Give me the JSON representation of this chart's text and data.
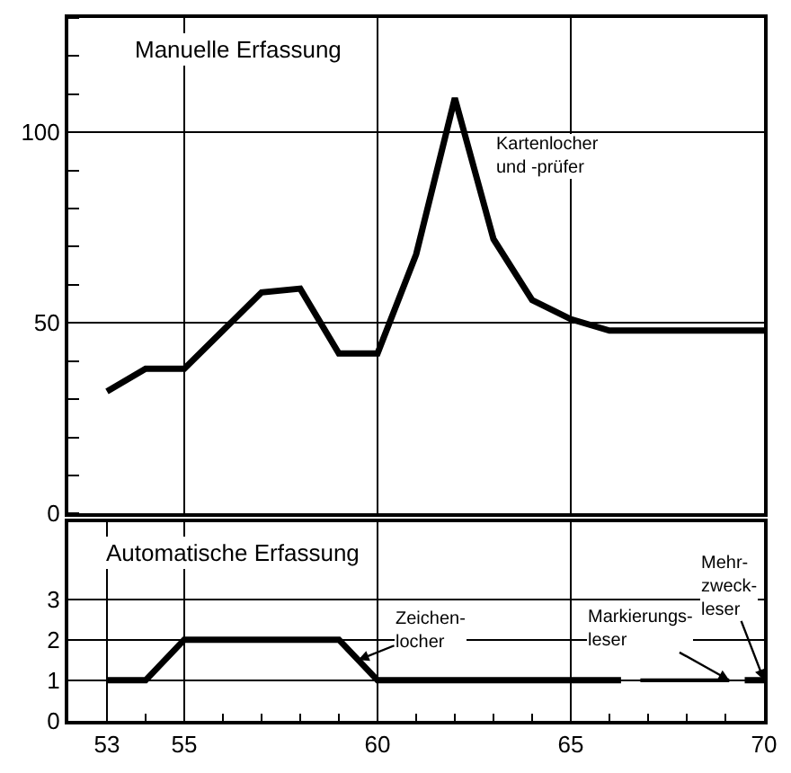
{
  "chart_data": [
    {
      "type": "line",
      "title": "Manuelle Erfassung",
      "xlim": [
        52,
        70
      ],
      "xticks": [
        {
          "value": 55,
          "label": null
        },
        {
          "value": 60,
          "label": null
        },
        {
          "value": 65,
          "label": null
        },
        {
          "value": 70,
          "label": null
        }
      ],
      "ylim": [
        0,
        130
      ],
      "yticks": [
        0,
        50,
        100
      ],
      "grid": true,
      "tick_labels": "y",
      "line_style": "solid",
      "marker": "none",
      "series": [
        {
          "name": "Kartenlocher\nund -prüfer",
          "color": "#000000",
          "x": [
            53,
            54,
            55,
            56,
            57,
            58,
            59,
            60,
            61,
            62,
            63,
            64,
            65,
            66,
            70
          ],
          "values": [
            32,
            38,
            38,
            48,
            58,
            59,
            42,
            42,
            68,
            109,
            72,
            56,
            51,
            48,
            48
          ]
        }
      ]
    },
    {
      "type": "line",
      "title": "Automatische Erfassung",
      "xlim": [
        52,
        70
      ],
      "xticks": [
        53,
        55,
        60,
        65,
        70
      ],
      "ylim": [
        0,
        4.9
      ],
      "yticks": [
        0,
        1,
        2,
        3
      ],
      "grid": true,
      "line_style": "solid",
      "marker": "none",
      "series": [
        {
          "name": "Zeichen-\nlocher",
          "color": "#000000",
          "x": [
            53,
            54,
            55,
            59,
            60,
            66.3
          ],
          "values": [
            1,
            1,
            2,
            2,
            1,
            1
          ]
        },
        {
          "name": "Markierungs-\nleser",
          "color": "#000000",
          "x": [
            66.8,
            69.1
          ],
          "values": [
            1,
            1
          ]
        },
        {
          "name": "Mehr-\nzweck-\nleser",
          "color": "#000000",
          "x": [
            69.5,
            70
          ],
          "values": [
            1,
            1
          ]
        }
      ]
    }
  ]
}
